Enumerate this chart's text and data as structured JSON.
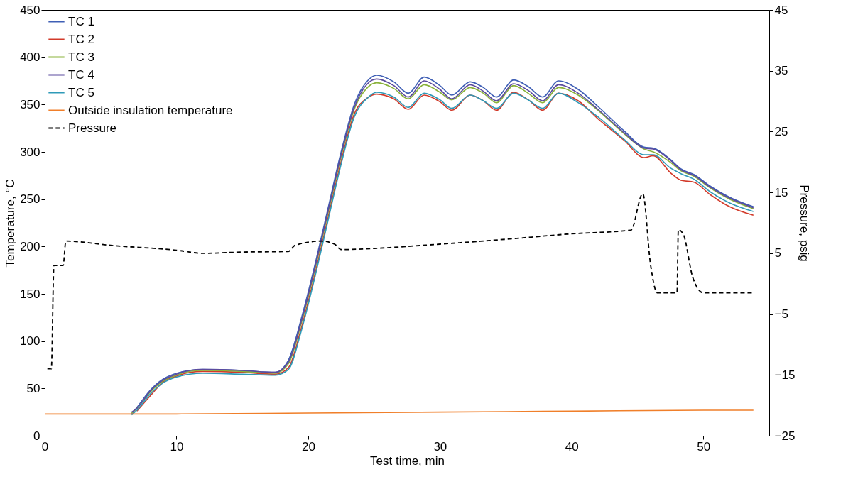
{
  "chart_data": {
    "type": "line",
    "xlabel": "Test time, min",
    "ylabel": "Temperature, °C",
    "y2label": "Pressure, psig",
    "xlim": [
      0,
      55
    ],
    "xticks": [
      0,
      10,
      20,
      30,
      40,
      50
    ],
    "ylim": [
      0,
      450
    ],
    "yticks": [
      0,
      50,
      100,
      150,
      200,
      250,
      300,
      350,
      400,
      450
    ],
    "y2lim": [
      -25,
      45
    ],
    "y2ticks": [
      {
        "value": -25,
        "label": "−25"
      },
      {
        "value": -15,
        "label": "−15"
      },
      {
        "value": -5,
        "label": "−5"
      },
      5,
      15,
      25,
      35,
      45
    ],
    "grid": false,
    "legend": "top left",
    "marker": "none",
    "x": [
      6.6,
      7,
      8,
      9,
      10,
      11,
      12,
      15,
      17.5,
      18.5,
      19.5,
      20.5,
      21.5,
      22.5,
      23.5,
      24.5,
      25.2,
      26.5,
      27.6,
      28.8,
      30,
      30.9,
      32.3,
      33.3,
      34.3,
      35.6,
      36.7,
      37.8,
      39,
      40.5,
      42,
      44,
      45.5,
      46.2,
      47.5,
      48.3,
      49.3,
      50.5,
      52,
      53.8
    ],
    "series": [
      {
        "name": "TC 1",
        "color": "#3f5fb5",
        "line_style": "solid",
        "values": [
          23,
          30,
          48,
          60,
          66,
          69,
          70,
          69,
          67,
          80,
          125,
          180,
          240,
          300,
          350,
          375,
          381,
          374,
          362,
          379,
          370,
          360,
          374,
          368,
          358,
          376,
          369,
          358,
          375,
          366,
          348,
          322,
          305,
          304,
          292,
          282,
          276,
          264,
          252,
          242
        ]
      },
      {
        "name": "TC 2",
        "color": "#d23a2a",
        "line_style": "solid",
        "values": [
          null,
          26,
          42,
          57,
          63,
          67,
          68,
          67,
          65,
          72,
          115,
          170,
          230,
          290,
          340,
          357,
          361,
          356,
          345,
          360,
          353,
          344,
          360,
          354,
          344,
          363,
          355,
          344,
          362,
          354,
          335,
          312,
          294,
          296,
          278,
          270,
          268,
          255,
          242,
          233
        ]
      },
      {
        "name": "TC 3",
        "color": "#8ab23a",
        "line_style": "solid",
        "values": [
          24,
          29,
          46,
          58,
          64,
          68,
          69,
          68,
          66,
          76,
          120,
          175,
          235,
          295,
          345,
          368,
          373,
          367,
          356,
          371,
          363,
          355,
          368,
          362,
          352,
          370,
          362,
          352,
          368,
          360,
          344,
          319,
          303,
          300,
          289,
          280,
          274,
          262,
          250,
          240
        ]
      },
      {
        "name": "TC 4",
        "color": "#5b4a9e",
        "line_style": "solid",
        "values": [
          25,
          29,
          47,
          59,
          65,
          69,
          70,
          69,
          67,
          78,
          122,
          177,
          237,
          297,
          347,
          372,
          377,
          370,
          358,
          375,
          366,
          356,
          371,
          364,
          354,
          372,
          365,
          354,
          371,
          362,
          345,
          320,
          304,
          303,
          291,
          281,
          275,
          263,
          251,
          241
        ]
      },
      {
        "name": "TC 5",
        "color": "#2f9ab8",
        "line_style": "solid",
        "values": [
          22,
          27,
          44,
          56,
          62,
          65,
          66,
          65,
          64,
          70,
          112,
          167,
          227,
          287,
          337,
          357,
          363,
          358,
          347,
          362,
          355,
          346,
          360,
          354,
          346,
          362,
          355,
          346,
          362,
          352,
          337,
          313,
          297,
          297,
          283,
          277,
          271,
          258,
          246,
          237
        ]
      },
      {
        "name": "Outside insulation temperature",
        "color": "#f07f2a",
        "line_style": "solid",
        "x": [
          0,
          10,
          20,
          30,
          40,
          50,
          53.8
        ],
        "values": [
          23,
          23,
          24,
          25,
          26,
          27,
          27
        ]
      },
      {
        "name": "Pressure",
        "color": "#000000",
        "line_style": "dashed",
        "axis": "y2",
        "x": [
          0.2,
          0.5,
          0.7,
          1.4,
          1.6,
          5,
          10,
          12,
          15,
          18.5,
          19,
          21,
          22,
          22.5,
          25,
          30,
          35,
          40,
          44.5,
          45.4,
          46,
          46.5,
          48,
          48.1,
          48.5,
          49.2,
          50,
          52,
          53.8
        ],
        "values": [
          -14,
          -14,
          3,
          3,
          7,
          6.3,
          5.5,
          5,
          5.2,
          5.3,
          6.3,
          7,
          6.5,
          5.6,
          5.8,
          6.5,
          7.3,
          8.2,
          8.8,
          14.8,
          3,
          -1.5,
          -1.5,
          8.9,
          8,
          1,
          -1.5,
          -1.5,
          -1.5
        ]
      }
    ]
  }
}
